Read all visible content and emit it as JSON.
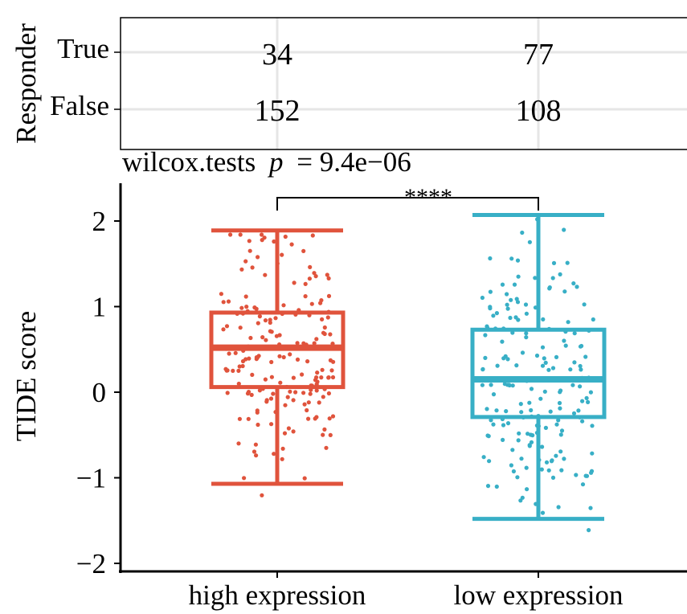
{
  "table": {
    "ylabel": "Responder",
    "rows": [
      "True",
      "False"
    ],
    "columns": [
      "high expression",
      "low expression"
    ],
    "counts": [
      [
        34,
        77
      ],
      [
        152,
        108
      ]
    ]
  },
  "stats": {
    "test_label": "wilcox.tests",
    "p_symbol": "p",
    "p_text": "= 9.4e−06",
    "significance": "****"
  },
  "chart_data": {
    "type": "boxplot",
    "ylabel": "TIDE score",
    "categories": [
      "high expression",
      "low expression"
    ],
    "ylim": [
      -2.2,
      2.5
    ],
    "yticks": [
      -2,
      -1,
      0,
      1,
      2
    ],
    "ytick_labels": [
      "−2",
      "−1",
      "0",
      "1",
      "2"
    ],
    "grid": false,
    "colors": [
      "#e0533c",
      "#38afc6"
    ],
    "boxes": [
      {
        "name": "high expression",
        "q1": 0.06,
        "median": 0.52,
        "q3": 0.93,
        "whisker_low": -1.07,
        "whisker_high": 1.89,
        "n": 186
      },
      {
        "name": "low expression",
        "q1": -0.29,
        "median": 0.15,
        "q3": 0.73,
        "whisker_low": -1.48,
        "whisker_high": 2.07,
        "n": 185
      }
    ]
  }
}
